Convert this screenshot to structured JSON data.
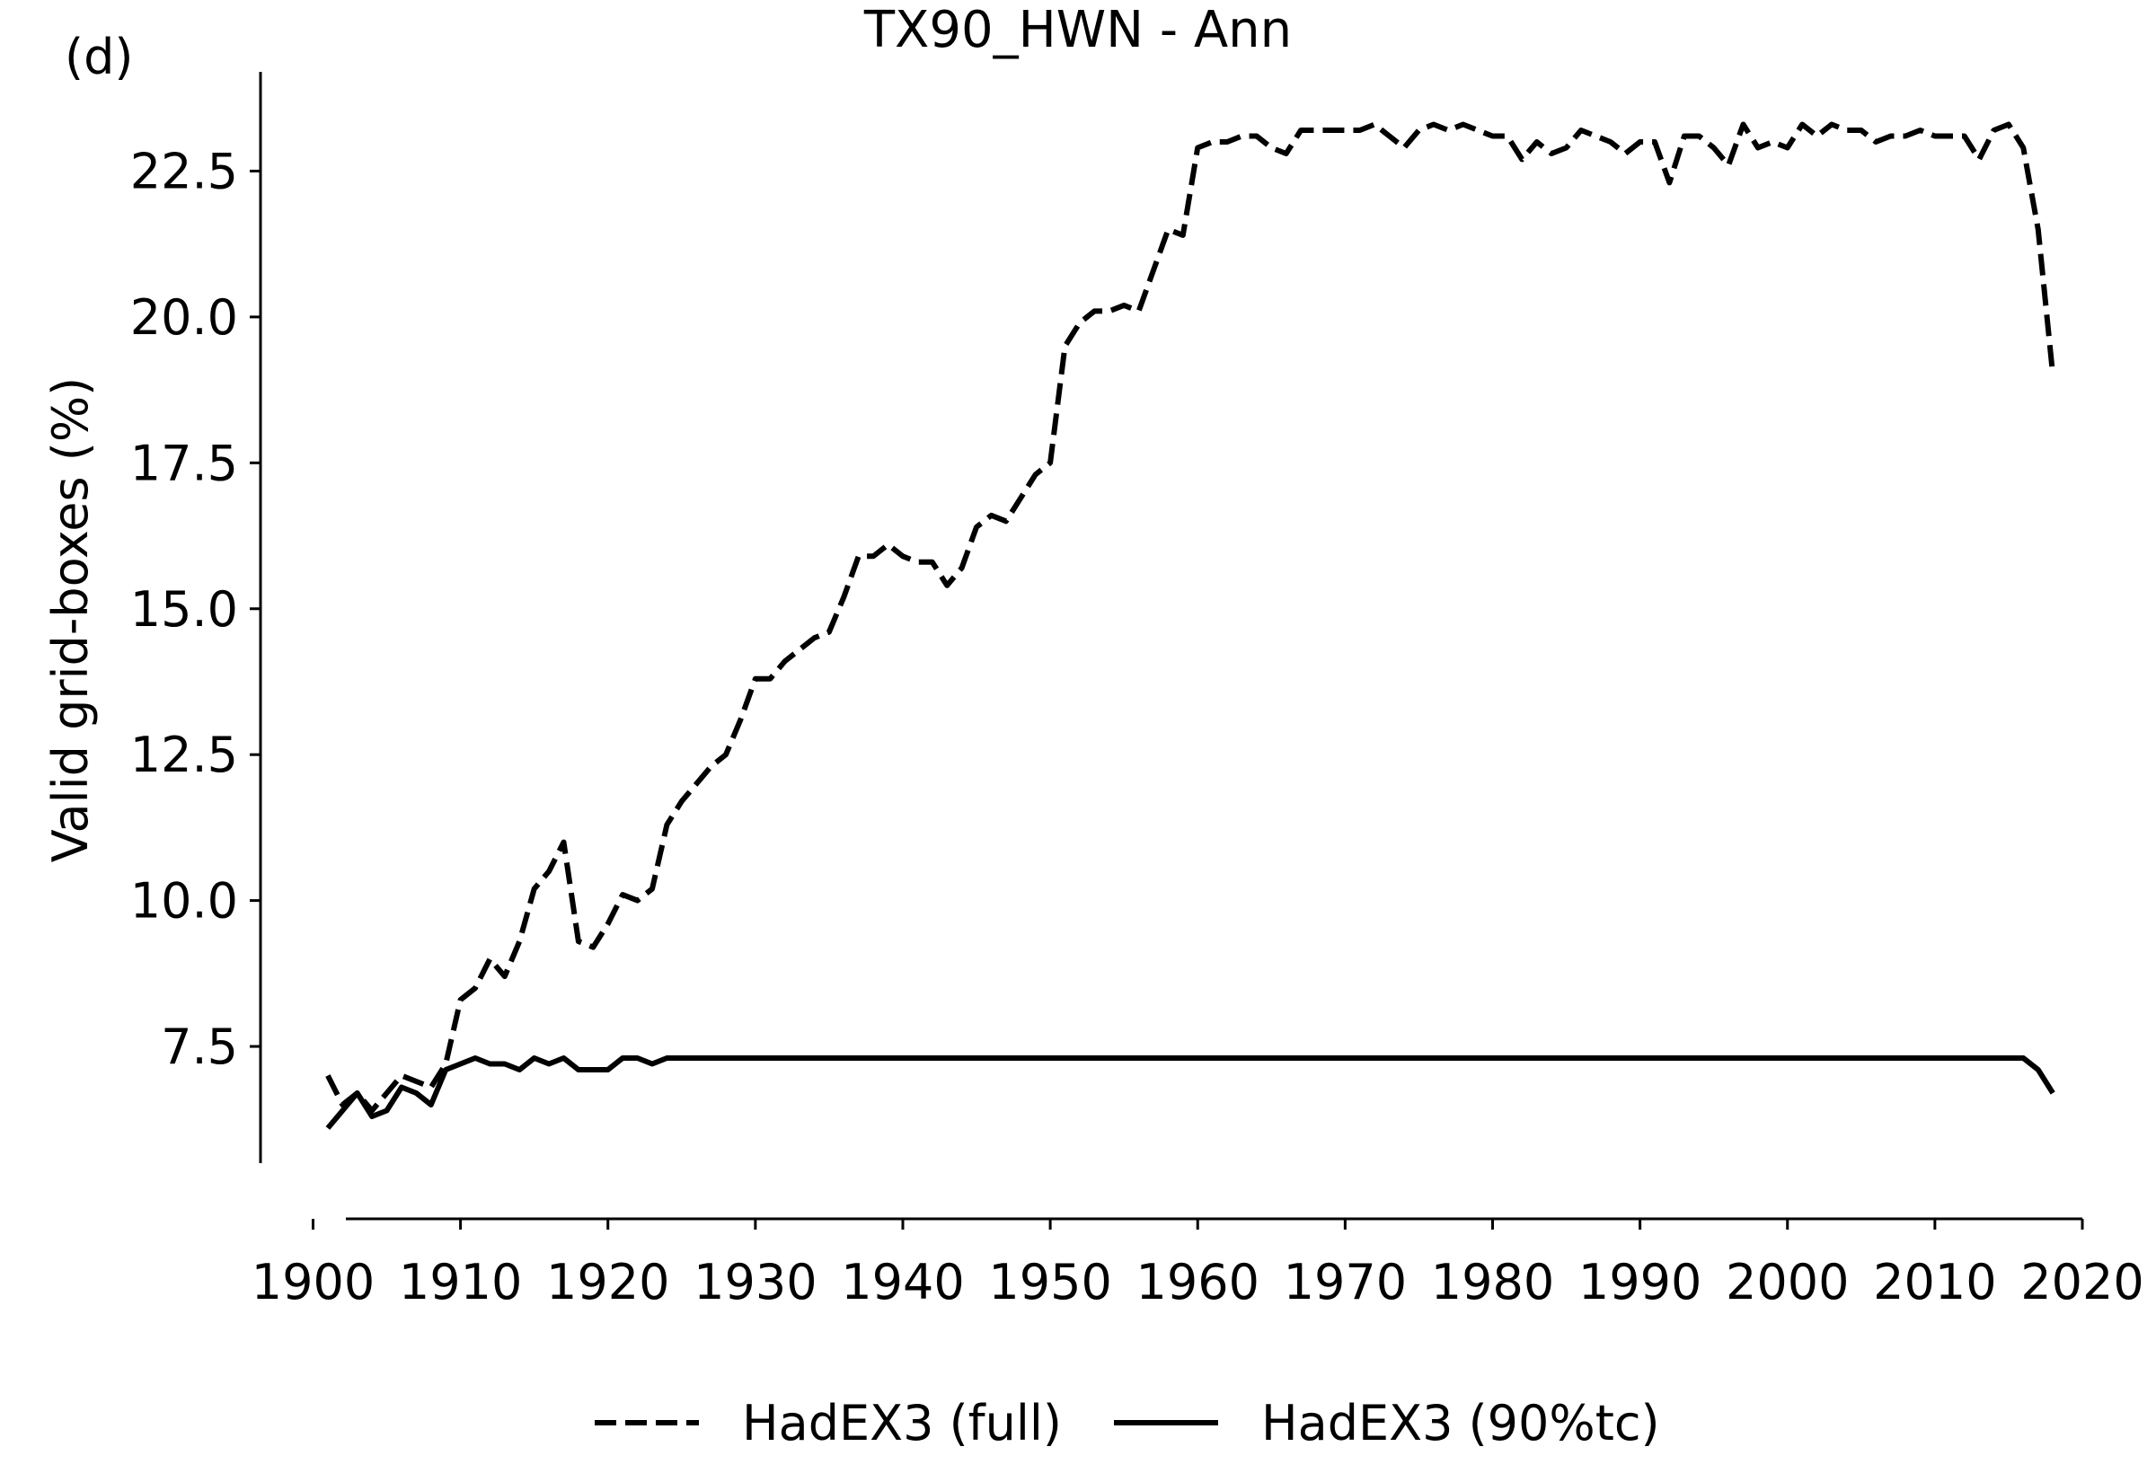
{
  "panel_label": "(d)",
  "chart_data": {
    "type": "line",
    "title": "TX90_HWN - Ann",
    "xlabel": "",
    "ylabel": "Valid grid-boxes (%)",
    "xlim": [
      1894,
      2020
    ],
    "ylim": [
      5.5,
      24.2
    ],
    "xticks": [
      1900,
      1910,
      1920,
      1930,
      1940,
      1950,
      1960,
      1970,
      1980,
      1990,
      2000,
      2010,
      2020
    ],
    "yticks": [
      7.5,
      10.0,
      12.5,
      15.0,
      17.5,
      20.0,
      22.5
    ],
    "ytick_labels": [
      "7.5",
      "10.0",
      "12.5",
      "15.0",
      "17.5",
      "20.0",
      "22.5"
    ],
    "grid": false,
    "legend_position": "bottom-center",
    "x": [
      1901,
      1902,
      1903,
      1904,
      1905,
      1906,
      1907,
      1908,
      1909,
      1910,
      1911,
      1912,
      1913,
      1914,
      1915,
      1916,
      1917,
      1918,
      1919,
      1920,
      1921,
      1922,
      1923,
      1924,
      1925,
      1926,
      1927,
      1928,
      1929,
      1930,
      1931,
      1932,
      1933,
      1934,
      1935,
      1936,
      1937,
      1938,
      1939,
      1940,
      1941,
      1942,
      1943,
      1944,
      1945,
      1946,
      1947,
      1948,
      1949,
      1950,
      1951,
      1952,
      1953,
      1954,
      1955,
      1956,
      1957,
      1958,
      1959,
      1960,
      1961,
      1962,
      1963,
      1964,
      1965,
      1966,
      1967,
      1968,
      1969,
      1970,
      1971,
      1972,
      1973,
      1974,
      1975,
      1976,
      1977,
      1978,
      1979,
      1980,
      1981,
      1982,
      1983,
      1984,
      1985,
      1986,
      1987,
      1988,
      1989,
      1990,
      1991,
      1992,
      1993,
      1994,
      1995,
      1996,
      1997,
      1998,
      1999,
      2000,
      2001,
      2002,
      2003,
      2004,
      2005,
      2006,
      2007,
      2008,
      2009,
      2010,
      2011,
      2012,
      2013,
      2014,
      2015,
      2016,
      2017,
      2018
    ],
    "series": [
      {
        "name": "HadEX3 (full)",
        "style": "dashed",
        "color": "#000000",
        "values": [
          7.0,
          6.5,
          6.7,
          6.4,
          6.7,
          7.0,
          6.9,
          6.8,
          7.2,
          8.3,
          8.5,
          9.0,
          8.7,
          9.3,
          10.2,
          10.5,
          11.0,
          9.3,
          9.2,
          9.6,
          10.1,
          10.0,
          10.2,
          11.3,
          11.7,
          12.0,
          12.3,
          12.5,
          13.1,
          13.8,
          13.8,
          14.1,
          14.3,
          14.5,
          14.6,
          15.2,
          15.9,
          15.9,
          16.1,
          15.9,
          15.8,
          15.8,
          15.4,
          15.7,
          16.4,
          16.6,
          16.5,
          16.9,
          17.3,
          17.5,
          19.5,
          19.9,
          20.1,
          20.1,
          20.2,
          20.1,
          20.8,
          21.5,
          21.4,
          22.9,
          23.0,
          23.0,
          23.1,
          23.1,
          22.9,
          22.8,
          23.2,
          23.2,
          23.2,
          23.2,
          23.2,
          23.3,
          23.1,
          22.9,
          23.2,
          23.3,
          23.2,
          23.3,
          23.2,
          23.1,
          23.1,
          22.7,
          23.0,
          22.8,
          22.9,
          23.2,
          23.1,
          23.0,
          22.8,
          23.0,
          23.0,
          22.3,
          23.1,
          23.1,
          22.9,
          22.6,
          23.3,
          22.9,
          23.0,
          22.9,
          23.3,
          23.1,
          23.3,
          23.2,
          23.2,
          23.0,
          23.1,
          23.1,
          23.2,
          23.1,
          23.1,
          23.1,
          22.7,
          23.2,
          23.3,
          22.9,
          21.5,
          19.0
        ]
      },
      {
        "name": "HadEX3 (90%tc)",
        "style": "solid",
        "color": "#000000",
        "values": [
          6.1,
          6.4,
          6.7,
          6.3,
          6.4,
          6.8,
          6.7,
          6.5,
          7.1,
          7.2,
          7.3,
          7.2,
          7.2,
          7.1,
          7.3,
          7.2,
          7.3,
          7.1,
          7.1,
          7.1,
          7.3,
          7.3,
          7.2,
          7.3,
          7.3,
          7.3,
          7.3,
          7.3,
          7.3,
          7.3,
          7.3,
          7.3,
          7.3,
          7.3,
          7.3,
          7.3,
          7.3,
          7.3,
          7.3,
          7.3,
          7.3,
          7.3,
          7.3,
          7.3,
          7.3,
          7.3,
          7.3,
          7.3,
          7.3,
          7.3,
          7.3,
          7.3,
          7.3,
          7.3,
          7.3,
          7.3,
          7.3,
          7.3,
          7.3,
          7.3,
          7.3,
          7.3,
          7.3,
          7.3,
          7.3,
          7.3,
          7.3,
          7.3,
          7.3,
          7.3,
          7.3,
          7.3,
          7.3,
          7.3,
          7.3,
          7.3,
          7.3,
          7.3,
          7.3,
          7.3,
          7.3,
          7.3,
          7.3,
          7.3,
          7.3,
          7.3,
          7.3,
          7.3,
          7.3,
          7.3,
          7.3,
          7.3,
          7.3,
          7.3,
          7.3,
          7.3,
          7.3,
          7.3,
          7.3,
          7.3,
          7.3,
          7.3,
          7.3,
          7.3,
          7.3,
          7.3,
          7.3,
          7.3,
          7.3,
          7.3,
          7.3,
          7.3,
          7.3,
          7.3,
          7.3,
          7.3,
          7.1,
          6.7
        ]
      }
    ]
  }
}
